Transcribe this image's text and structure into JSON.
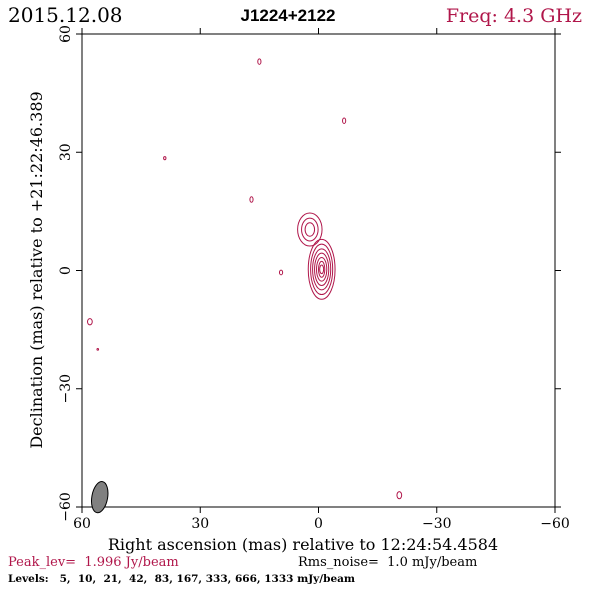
{
  "header": {
    "date": "2015.12.08",
    "source": "J1224+2122",
    "frequency": "Freq: 4.3 GHz"
  },
  "footer": {
    "peak": "Peak_lev=  1.996 Jy/beam",
    "rms": "Rms_noise=  1.0 mJy/beam",
    "levels": "Levels:   5,  10,  21,  42,  83, 167, 333, 666, 1333 mJy/beam"
  },
  "colors": {
    "contour": "#b0164a",
    "frame": "#000000",
    "beam": "#808080"
  },
  "chart_data": {
    "type": "contour",
    "title": "J1224+2122",
    "xlabel": "Right ascension (mas) relative to 12:24:54.4584",
    "ylabel": "Declination (mas) relative to +21:22:46.389",
    "xlim": [
      60,
      -60
    ],
    "ylim": [
      -60,
      60
    ],
    "xticks": [
      60,
      30,
      0,
      -30,
      -60
    ],
    "yticks": [
      -60,
      -30,
      0,
      30,
      60
    ],
    "xtick_labels": [
      "60",
      "30",
      "0",
      "−30",
      "−60"
    ],
    "ytick_labels": [
      "−60",
      "−30",
      "0",
      "30",
      "60"
    ],
    "grid": false,
    "levels_mJy_per_beam": [
      5,
      10,
      21,
      42,
      83,
      167,
      333,
      666,
      1333
    ],
    "peak_Jy_per_beam": 1.996,
    "rms_mJy_per_beam": 1.0,
    "components": [
      {
        "name": "core",
        "x": -0.8,
        "y": 0.3,
        "contours": [
          {
            "rx": 3.4,
            "ry": 7.6
          },
          {
            "rx": 2.8,
            "ry": 6.4
          },
          {
            "rx": 2.3,
            "ry": 5.2
          },
          {
            "rx": 1.8,
            "ry": 4.1
          },
          {
            "rx": 1.3,
            "ry": 3.0
          },
          {
            "rx": 0.8,
            "ry": 2.0
          },
          {
            "rx": 0.5,
            "ry": 1.1
          }
        ]
      },
      {
        "name": "jet",
        "x": 2.2,
        "y": 10.4,
        "contours": [
          {
            "rx": 3.1,
            "ry": 4.2
          },
          {
            "rx": 2.1,
            "ry": 2.9
          },
          {
            "rx": 1.2,
            "ry": 1.7
          }
        ]
      },
      {
        "name": "noise",
        "x": 15.0,
        "y": 53.0,
        "contours": [
          {
            "rx": 0.4,
            "ry": 0.7
          }
        ]
      },
      {
        "name": "noise",
        "x": -6.5,
        "y": 38.0,
        "contours": [
          {
            "rx": 0.4,
            "ry": 0.7
          }
        ]
      },
      {
        "name": "noise",
        "x": 39.0,
        "y": 28.5,
        "contours": [
          {
            "rx": 0.3,
            "ry": 0.4
          }
        ]
      },
      {
        "name": "noise",
        "x": 17.0,
        "y": 18.0,
        "contours": [
          {
            "rx": 0.4,
            "ry": 0.7
          }
        ]
      },
      {
        "name": "noise",
        "x": 9.5,
        "y": -0.5,
        "contours": [
          {
            "rx": 0.4,
            "ry": 0.6
          }
        ]
      },
      {
        "name": "noise",
        "x": 58.0,
        "y": -13.0,
        "contours": [
          {
            "rx": 0.6,
            "ry": 0.8
          }
        ]
      },
      {
        "name": "noise",
        "x": 56.0,
        "y": -20.0,
        "contours": [
          {
            "rx": 0.2,
            "ry": 0.2
          }
        ]
      },
      {
        "name": "noise",
        "x": -20.5,
        "y": -57.0,
        "contours": [
          {
            "rx": 0.6,
            "ry": 0.9
          }
        ]
      }
    ],
    "beam": {
      "x": 55.5,
      "y": -57.5,
      "major": 4.0,
      "minor": 2.0,
      "pa_deg": 10
    }
  }
}
